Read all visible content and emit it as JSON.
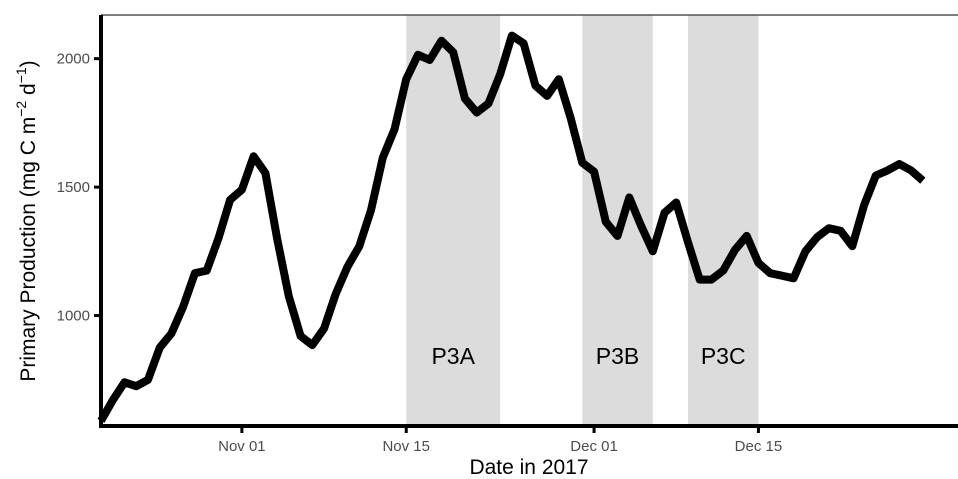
{
  "chart_data": {
    "type": "line",
    "xlabel": "Date in 2017",
    "ylabel_parts": {
      "prefix": "Primary Production (mg C m",
      "exp1": "−2",
      "mid": " d",
      "exp2": "−1",
      "suffix": ")"
    },
    "x_range": [
      "2017-10-20",
      "2018-01-01"
    ],
    "ylim": [
      570,
      2170
    ],
    "x_ticks": [
      {
        "date": "2017-11-01",
        "label": "Nov 01"
      },
      {
        "date": "2017-11-15",
        "label": "Nov 15"
      },
      {
        "date": "2017-12-01",
        "label": "Dec 01"
      },
      {
        "date": "2017-12-15",
        "label": "Dec 15"
      }
    ],
    "y_ticks": [
      {
        "value": 1000,
        "label": "1000"
      },
      {
        "value": 1500,
        "label": "1500"
      },
      {
        "value": 2000,
        "label": "2000"
      }
    ],
    "grid": false,
    "shaded_periods": [
      {
        "label": "P3A",
        "start": "2017-11-15",
        "end": "2017-11-23"
      },
      {
        "label": "P3B",
        "start": "2017-11-30",
        "end": "2017-12-06"
      },
      {
        "label": "P3C",
        "start": "2017-12-09",
        "end": "2017-12-15"
      }
    ],
    "series": [
      {
        "color": "#000000",
        "points": [
          [
            "2017-10-20",
            590
          ],
          [
            "2017-10-21",
            670
          ],
          [
            "2017-10-22",
            740
          ],
          [
            "2017-10-23",
            725
          ],
          [
            "2017-10-24",
            750
          ],
          [
            "2017-10-25",
            875
          ],
          [
            "2017-10-26",
            930
          ],
          [
            "2017-10-27",
            1035
          ],
          [
            "2017-10-28",
            1165
          ],
          [
            "2017-10-29",
            1175
          ],
          [
            "2017-10-30",
            1300
          ],
          [
            "2017-10-31",
            1450
          ],
          [
            "2017-11-01",
            1490
          ],
          [
            "2017-11-02",
            1620
          ],
          [
            "2017-11-03",
            1555
          ],
          [
            "2017-11-04",
            1300
          ],
          [
            "2017-11-05",
            1075
          ],
          [
            "2017-11-06",
            920
          ],
          [
            "2017-11-07",
            885
          ],
          [
            "2017-11-08",
            950
          ],
          [
            "2017-11-09",
            1085
          ],
          [
            "2017-11-10",
            1190
          ],
          [
            "2017-11-11",
            1270
          ],
          [
            "2017-11-12",
            1410
          ],
          [
            "2017-11-13",
            1615
          ],
          [
            "2017-11-14",
            1725
          ],
          [
            "2017-11-15",
            1920
          ],
          [
            "2017-11-16",
            2015
          ],
          [
            "2017-11-17",
            1995
          ],
          [
            "2017-11-18",
            2070
          ],
          [
            "2017-11-19",
            2025
          ],
          [
            "2017-11-20",
            1845
          ],
          [
            "2017-11-21",
            1790
          ],
          [
            "2017-11-22",
            1825
          ],
          [
            "2017-11-23",
            1940
          ],
          [
            "2017-11-24",
            2090
          ],
          [
            "2017-11-25",
            2060
          ],
          [
            "2017-11-26",
            1895
          ],
          [
            "2017-11-27",
            1855
          ],
          [
            "2017-11-28",
            1920
          ],
          [
            "2017-11-29",
            1770
          ],
          [
            "2017-11-30",
            1595
          ],
          [
            "2017-12-01",
            1560
          ],
          [
            "2017-12-02",
            1365
          ],
          [
            "2017-12-03",
            1310
          ],
          [
            "2017-12-04",
            1460
          ],
          [
            "2017-12-05",
            1350
          ],
          [
            "2017-12-06",
            1250
          ],
          [
            "2017-12-07",
            1400
          ],
          [
            "2017-12-08",
            1440
          ],
          [
            "2017-12-09",
            1285
          ],
          [
            "2017-12-10",
            1140
          ],
          [
            "2017-12-11",
            1140
          ],
          [
            "2017-12-12",
            1175
          ],
          [
            "2017-12-13",
            1255
          ],
          [
            "2017-12-14",
            1310
          ],
          [
            "2017-12-15",
            1205
          ],
          [
            "2017-12-16",
            1165
          ],
          [
            "2017-12-17",
            1155
          ],
          [
            "2017-12-18",
            1145
          ],
          [
            "2017-12-19",
            1250
          ],
          [
            "2017-12-20",
            1305
          ],
          [
            "2017-12-21",
            1340
          ],
          [
            "2017-12-22",
            1330
          ],
          [
            "2017-12-23",
            1270
          ],
          [
            "2017-12-24",
            1430
          ],
          [
            "2017-12-25",
            1545
          ],
          [
            "2017-12-26",
            1565
          ],
          [
            "2017-12-27",
            1590
          ],
          [
            "2017-12-28",
            1565
          ],
          [
            "2017-12-29",
            1525
          ]
        ]
      }
    ]
  }
}
